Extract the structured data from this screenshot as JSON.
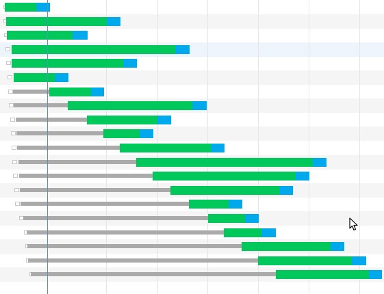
{
  "colors": {
    "row_alt": "#f5f5f5",
    "row_highlight": "#eef4fc",
    "grid": "#e6e6e6",
    "today_line": "#5b8dc9",
    "queue": "#aaaaaa",
    "run": "#00c85a",
    "tail": "#00a8ec"
  },
  "icons": {
    "cursor": "mouse-pointer-icon"
  }
}
